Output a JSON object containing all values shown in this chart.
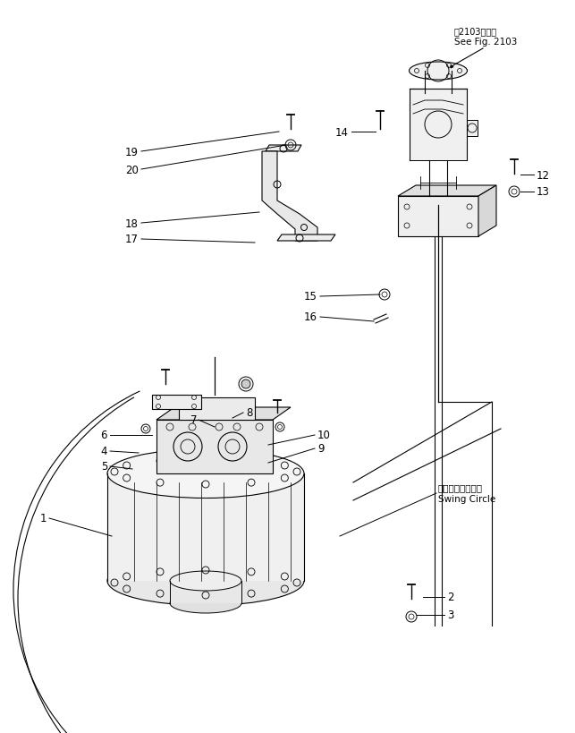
{
  "background_color": "#ffffff",
  "line_color": "#000000",
  "text_color": "#000000",
  "fig_width": 6.43,
  "fig_height": 8.2,
  "dpi": 100,
  "note_top_line1": "第2103図参照",
  "note_top_line2": "See Fig. 2103",
  "swing_circle_jp": "スイングサークル",
  "swing_circle_en": "Swing Circle"
}
